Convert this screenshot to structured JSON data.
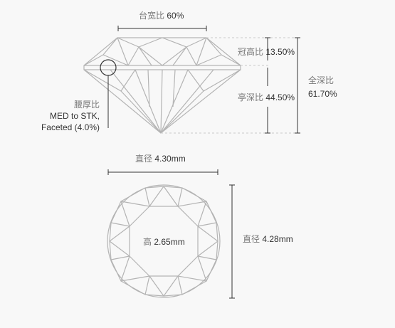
{
  "profile": {
    "table": {
      "label": "台宽比",
      "value": "60%"
    },
    "crown": {
      "label": "冠高比",
      "value": "13.50%"
    },
    "pavilion": {
      "label": "亭深比",
      "value": "44.50%"
    },
    "total": {
      "label": "全深比",
      "value": "61.70%"
    },
    "girdle": {
      "label": "腰厚比",
      "line1": "MED to STK,",
      "line2": "Faceted (4.0%)"
    }
  },
  "top_view": {
    "diameter": {
      "label": "直径",
      "value": "4.30mm"
    },
    "height": {
      "label": "高",
      "value": "2.65mm"
    },
    "diameter2": {
      "label": "直径",
      "value": "4.28mm"
    }
  },
  "colors": {
    "lines": "#b0b0b0",
    "dims": "#333333",
    "dashes": "#c8c8c8",
    "background": "#f8f8f8"
  }
}
